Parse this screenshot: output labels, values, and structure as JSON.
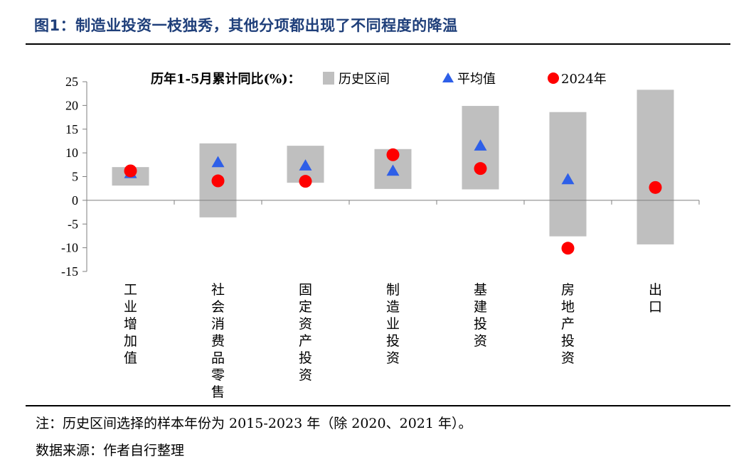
{
  "header": {
    "title": "图1：制造业投资一枝独秀，其他分项都出现了不同程度的降温"
  },
  "footer": {
    "note": "注：历史区间选择的样本年份为 2015-2023 年（除 2020、2021 年）。",
    "source": "数据来源：作者自行整理"
  },
  "colors": {
    "title": "#1f3f7a",
    "range_bar": "#bfbfbf",
    "average_marker": "#2e5fe8",
    "current_marker": "#ff0000"
  },
  "chart_data": {
    "type": "range-dot",
    "legend_title": "历年1-5月累计同比(%)：",
    "legend_placement": "top",
    "categories": [
      "工业增加值",
      "社会消费品零售",
      "固定资产投资",
      "制造业投资",
      "基建投资",
      "房地产投资",
      "出口"
    ],
    "series": [
      {
        "name": "历史区间",
        "kind": "range",
        "low": [
          3.1,
          -3.6,
          3.7,
          2.4,
          2.3,
          -7.6,
          -9.3
        ],
        "high": [
          7.0,
          12.0,
          11.5,
          10.8,
          19.9,
          18.6,
          23.3
        ]
      },
      {
        "name": "平均值",
        "kind": "triangle",
        "values": [
          5.7,
          8.0,
          7.3,
          6.2,
          11.5,
          4.4,
          null
        ]
      },
      {
        "name": "2024年",
        "kind": "circle",
        "values": [
          6.2,
          4.1,
          4.0,
          9.6,
          6.7,
          -10.1,
          2.7
        ]
      }
    ],
    "ylim": [
      -15,
      25
    ],
    "yticks": [
      25,
      20,
      15,
      10,
      5,
      0,
      -5,
      -10,
      -15
    ],
    "grid": false,
    "xlabel": "",
    "ylabel": ""
  }
}
